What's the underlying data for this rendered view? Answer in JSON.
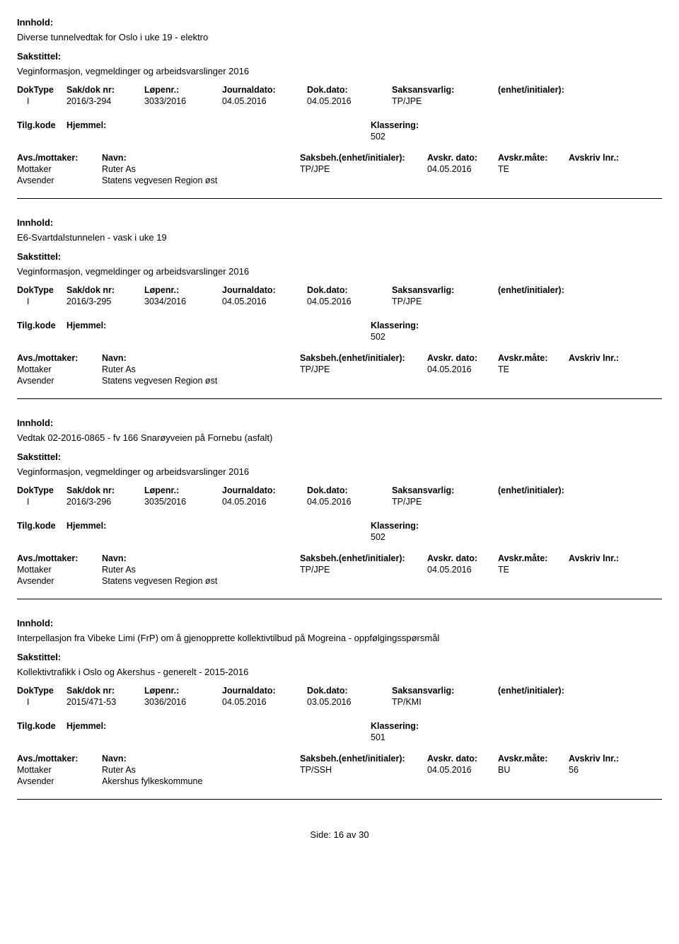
{
  "labels": {
    "innhold": "Innhold:",
    "sakstittel": "Sakstittel:",
    "dokType": "DokType",
    "sakDokNr": "Sak/dok nr:",
    "lopenr": "Løpenr.:",
    "journaldato": "Journaldato:",
    "dokDato": "Dok.dato:",
    "saksansvarlig": "Saksansvarlig:",
    "enhetInitialer": "(enhet/initialer):",
    "tilgKode": "Tilg.kode",
    "hjemmel": "Hjemmel:",
    "klassering": "Klassering:",
    "avsMottaker": "Avs./mottaker:",
    "navn": "Navn:",
    "saksbeh": "Saksbeh.(enhet/initialer):",
    "avskrDato": "Avskr. dato:",
    "avskrMate": "Avskr.måte:",
    "avskrivLnr": "Avskriv lnr.:",
    "mottaker": "Mottaker",
    "avsender": "Avsender",
    "side": "Side:",
    "av": "av"
  },
  "entries": [
    {
      "innhold": "Diverse tunnelvedtak for Oslo i uke 19 - elektro",
      "sakstittel": "Veginformasjon, vegmeldinger og arbeidsvarslinger 2016",
      "dokType": "I",
      "sakDokNr": "2016/3-294",
      "lopenr": "3033/2016",
      "journaldato": "04.05.2016",
      "dokDato": "04.05.2016",
      "saksansvarlig": "TP/JPE",
      "klassering": "502",
      "mottakerNavn": "Ruter As",
      "avsenderNavn": "Statens vegvesen Region øst",
      "saksbeh": "TP/JPE",
      "avskrDato": "04.05.2016",
      "avskrMate": "TE",
      "avskrivLnr": ""
    },
    {
      "innhold": "E6-Svartdalstunnelen - vask i uke 19",
      "sakstittel": "Veginformasjon, vegmeldinger og arbeidsvarslinger 2016",
      "dokType": "I",
      "sakDokNr": "2016/3-295",
      "lopenr": "3034/2016",
      "journaldato": "04.05.2016",
      "dokDato": "04.05.2016",
      "saksansvarlig": "TP/JPE",
      "klassering": "502",
      "mottakerNavn": "Ruter As",
      "avsenderNavn": "Statens vegvesen Region øst",
      "saksbeh": "TP/JPE",
      "avskrDato": "04.05.2016",
      "avskrMate": "TE",
      "avskrivLnr": ""
    },
    {
      "innhold": "Vedtak 02-2016-0865 - fv 166 Snarøyveien på Fornebu (asfalt)",
      "sakstittel": "Veginformasjon, vegmeldinger og arbeidsvarslinger 2016",
      "dokType": "I",
      "sakDokNr": "2016/3-296",
      "lopenr": "3035/2016",
      "journaldato": "04.05.2016",
      "dokDato": "04.05.2016",
      "saksansvarlig": "TP/JPE",
      "klassering": "502",
      "mottakerNavn": "Ruter As",
      "avsenderNavn": "Statens vegvesen Region øst",
      "saksbeh": "TP/JPE",
      "avskrDato": "04.05.2016",
      "avskrMate": "TE",
      "avskrivLnr": ""
    },
    {
      "innhold": "Interpellasjon fra Vibeke Limi (FrP) om å gjenopprette kollektivtilbud på Mogreina - oppfølgingsspørsmål",
      "sakstittel": "Kollektivtrafikk i Oslo og Akershus - generelt - 2015-2016",
      "dokType": "I",
      "sakDokNr": "2015/471-53",
      "lopenr": "3036/2016",
      "journaldato": "04.05.2016",
      "dokDato": "03.05.2016",
      "saksansvarlig": "TP/KMI",
      "klassering": "501",
      "mottakerNavn": "Ruter As",
      "avsenderNavn": "Akershus fylkeskommune",
      "saksbeh": "TP/SSH",
      "avskrDato": "04.05.2016",
      "avskrMate": "BU",
      "avskrivLnr": "56"
    }
  ],
  "footer": {
    "page": "16",
    "total": "30"
  }
}
